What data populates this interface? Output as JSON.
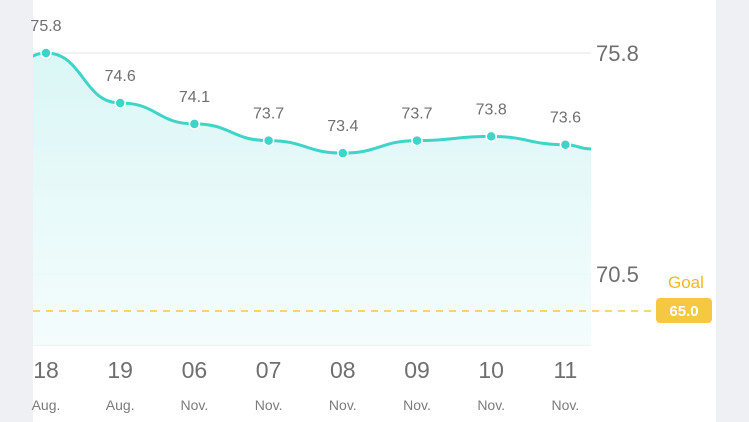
{
  "chart_data": {
    "type": "area",
    "x": [
      {
        "day": "18",
        "month": "Aug."
      },
      {
        "day": "19",
        "month": "Aug."
      },
      {
        "day": "06",
        "month": "Nov."
      },
      {
        "day": "07",
        "month": "Nov."
      },
      {
        "day": "08",
        "month": "Nov."
      },
      {
        "day": "09",
        "month": "Nov."
      },
      {
        "day": "10",
        "month": "Nov."
      },
      {
        "day": "11",
        "month": "Nov."
      }
    ],
    "values": [
      75.8,
      74.6,
      74.1,
      73.7,
      73.4,
      73.7,
      73.8,
      73.6
    ],
    "value_labels": [
      "75.8",
      "74.6",
      "74.1",
      "73.7",
      "73.4",
      "73.7",
      "73.8",
      "73.6"
    ],
    "trailing_value": 73.5,
    "y_ticks": [
      {
        "value": 75.8,
        "label": "75.8"
      },
      {
        "value": 70.5,
        "label": "70.5"
      }
    ],
    "goal": {
      "label": "Goal",
      "value": 65.0,
      "value_label": "65.0"
    },
    "grid": true,
    "colors": {
      "line": "#3fd4c8",
      "fill": "#e4f8f8",
      "goal": "#f5c842",
      "goal_text": "#f0b825",
      "grid": "#e6e6e6"
    }
  }
}
